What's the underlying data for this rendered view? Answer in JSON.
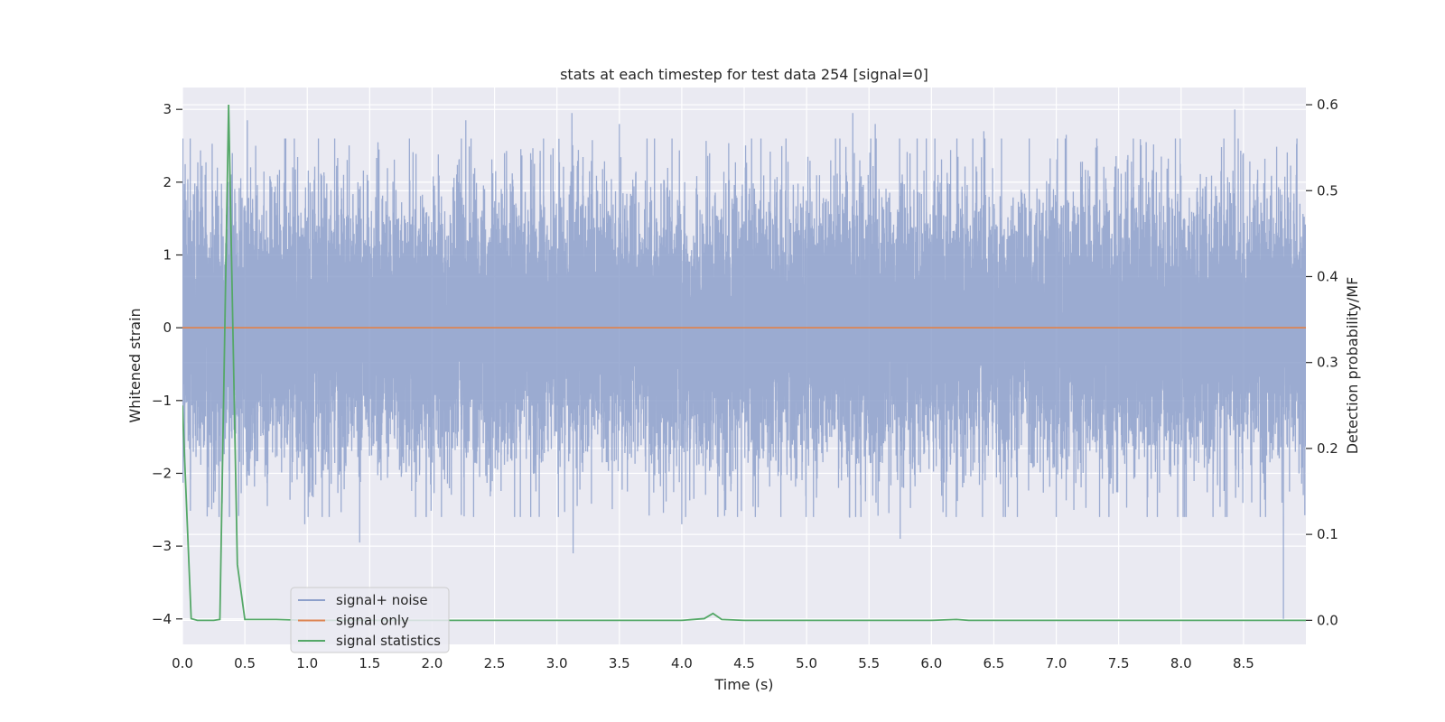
{
  "chart_data": {
    "type": "line",
    "title": "stats at each timestep for test data 254 [signal=0]",
    "xlabel": "Time (s)",
    "ylabel": "Whitened strain",
    "y2label": "Detection probability/MF",
    "xlim": [
      0.0,
      9.0
    ],
    "ylim": [
      -4.35,
      3.3
    ],
    "y2lim": [
      -0.028,
      0.62
    ],
    "xticks": [
      0.0,
      0.5,
      1.0,
      1.5,
      2.0,
      2.5,
      3.0,
      3.5,
      4.0,
      4.5,
      5.0,
      5.5,
      6.0,
      6.5,
      7.0,
      7.5,
      8.0,
      8.5
    ],
    "xtick_labels": [
      "0.0",
      "0.5",
      "1.0",
      "1.5",
      "2.0",
      "2.5",
      "3.0",
      "3.5",
      "4.0",
      "4.5",
      "5.0",
      "5.5",
      "6.0",
      "6.5",
      "7.0",
      "7.5",
      "8.0",
      "8.5"
    ],
    "yticks": [
      3,
      2,
      1,
      0,
      -1,
      -2,
      -3,
      -4
    ],
    "ytick_labels": [
      "3",
      "2",
      "1",
      "0",
      "−1",
      "−2",
      "−3",
      "−4"
    ],
    "y2ticks": [
      0.6,
      0.5,
      0.4,
      0.3,
      0.2,
      0.1,
      0.0
    ],
    "y2tick_labels": [
      "0.6",
      "0.5",
      "0.4",
      "0.3",
      "0.2",
      "0.1",
      "0.0"
    ],
    "grid": true,
    "legend_placement": "lower-left",
    "series": [
      {
        "name": "signal+ noise",
        "axis": "left",
        "color": "#8da0cb",
        "kind": "noise",
        "sample_rate": 2048,
        "x_end": 9.0,
        "noise_std": 1.0,
        "spikes": [
          [
            0.28,
            2.2
          ],
          [
            0.4,
            2.4
          ],
          [
            0.45,
            -2.5
          ],
          [
            0.52,
            2.85
          ],
          [
            0.82,
            2.6
          ],
          [
            0.98,
            -2.7
          ],
          [
            1.42,
            -2.95
          ],
          [
            1.48,
            2.1
          ],
          [
            2.27,
            2.85
          ],
          [
            2.58,
            2.4
          ],
          [
            3.12,
            2.95
          ],
          [
            3.13,
            -3.1
          ],
          [
            3.5,
            2.8
          ],
          [
            4.0,
            -2.7
          ],
          [
            5.37,
            2.95
          ],
          [
            5.55,
            2.8
          ],
          [
            5.75,
            -2.9
          ],
          [
            6.42,
            2.7
          ],
          [
            7.08,
            2.65
          ],
          [
            7.72,
            2.55
          ],
          [
            8.43,
            3.0
          ],
          [
            8.82,
            -4.0
          ]
        ]
      },
      {
        "name": "signal only",
        "axis": "left",
        "color": "#dd8452",
        "x": [
          0.0,
          9.0
        ],
        "y": [
          0.0,
          0.0
        ]
      },
      {
        "name": "signal statistics",
        "axis": "right",
        "color": "#55a868",
        "x": [
          0.0,
          0.07,
          0.12,
          0.25,
          0.3,
          0.37,
          0.44,
          0.5,
          0.75,
          1.0,
          2.0,
          3.0,
          4.0,
          4.18,
          4.25,
          4.32,
          4.5,
          5.0,
          6.0,
          6.2,
          6.3,
          7.0,
          8.0,
          8.8,
          9.0
        ],
        "y": [
          0.25,
          0.002,
          0.0,
          0.0,
          0.001,
          0.6,
          0.065,
          0.001,
          0.001,
          0.0,
          0.0,
          0.0,
          0.0,
          0.002,
          0.008,
          0.001,
          0.0,
          0.0,
          0.0,
          0.001,
          0.0,
          0.0,
          0.0,
          0.0,
          0.0
        ]
      }
    ]
  }
}
